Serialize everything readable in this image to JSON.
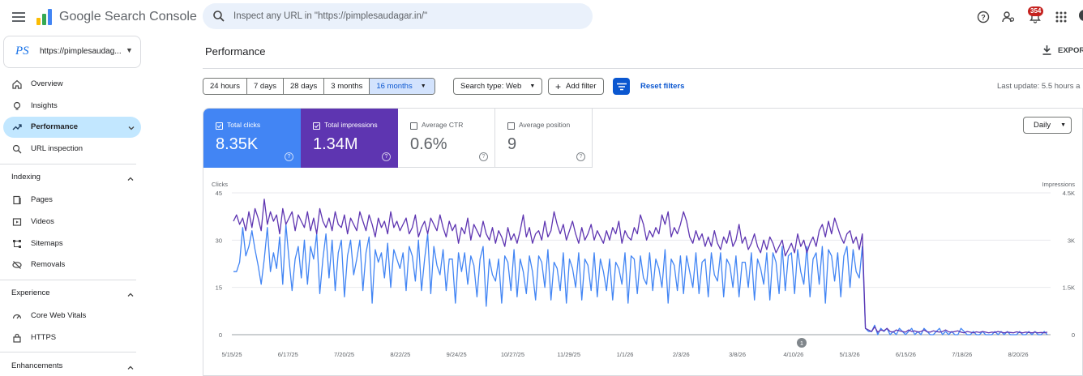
{
  "app": {
    "name": "Google Search Console"
  },
  "search": {
    "placeholder": "Inspect any URL in \"https://pimplesaudagar.in/\""
  },
  "topbar": {
    "notification_count": "354"
  },
  "property": {
    "logo_text": "PS",
    "label": "https://pimplesaudag..."
  },
  "sidebar": {
    "items": [
      {
        "label": "Overview",
        "icon": "home-icon"
      },
      {
        "label": "Insights",
        "icon": "lightbulb-icon"
      },
      {
        "label": "Performance",
        "icon": "trending-up-icon",
        "active": true
      },
      {
        "label": "URL inspection",
        "icon": "search-icon"
      }
    ],
    "indexing": {
      "title": "Indexing",
      "items": [
        {
          "label": "Pages",
          "icon": "pages-icon"
        },
        {
          "label": "Videos",
          "icon": "video-icon"
        },
        {
          "label": "Sitemaps",
          "icon": "sitemap-icon"
        },
        {
          "label": "Removals",
          "icon": "removal-icon"
        }
      ]
    },
    "experience": {
      "title": "Experience",
      "items": [
        {
          "label": "Core Web Vitals",
          "icon": "gauge-icon"
        },
        {
          "label": "HTTPS",
          "icon": "lock-icon"
        }
      ]
    },
    "enhancements": {
      "title": "Enhancements"
    }
  },
  "main": {
    "title": "Performance",
    "export_label": "EXPOR",
    "date_ranges": [
      "24 hours",
      "7 days",
      "28 days",
      "3 months",
      "16 months"
    ],
    "selected_range": "16 months",
    "search_type": "Search type: Web",
    "add_filter": "Add filter",
    "reset_filters": "Reset filters",
    "last_update": "Last update: 5.5 hours a",
    "granularity": "Daily"
  },
  "metrics": [
    {
      "label": "Total clicks",
      "value": "8.35K",
      "checked": true,
      "color": "#4285f4"
    },
    {
      "label": "Total impressions",
      "value": "1.34M",
      "checked": true,
      "color": "#5e35b1"
    },
    {
      "label": "Average CTR",
      "value": "0.6%",
      "checked": false
    },
    {
      "label": "Average position",
      "value": "9",
      "checked": false
    }
  ],
  "chart_data": {
    "type": "line",
    "left_axis_label": "Clicks",
    "right_axis_label": "Impressions",
    "left_ticks": [
      "45",
      "30",
      "15",
      "0"
    ],
    "right_ticks": [
      "4.5K",
      "3K",
      "1.5K",
      "0"
    ],
    "ylim_left": [
      0,
      45
    ],
    "ylim_right": [
      0,
      4500
    ],
    "x_tick_labels": [
      "5/15/25",
      "6/17/25",
      "7/20/25",
      "8/22/25",
      "9/24/25",
      "10/27/25",
      "11/29/25",
      "1/1/26",
      "2/3/26",
      "3/8/26",
      "4/10/26",
      "5/13/26",
      "6/15/26",
      "7/18/26",
      "8/20/26"
    ],
    "annotation_marker": "1",
    "series": [
      {
        "name": "Clicks",
        "color": "#4285f4",
        "values": [
          20,
          20,
          23,
          34,
          25,
          28,
          33,
          27,
          22,
          16,
          24,
          34,
          20,
          26,
          21,
          31,
          16,
          35,
          24,
          14,
          24,
          28,
          18,
          30,
          16,
          28,
          24,
          32,
          13,
          24,
          32,
          18,
          30,
          14,
          26,
          30,
          12,
          25,
          30,
          19,
          24,
          30,
          14,
          26,
          31,
          10,
          27,
          23,
          26,
          18,
          29,
          15,
          27,
          24,
          21,
          26,
          14,
          28,
          25,
          17,
          30,
          14,
          24,
          32,
          13,
          28,
          22,
          19,
          27,
          14,
          24,
          24,
          10,
          26,
          20,
          26,
          16,
          25,
          22,
          12,
          24,
          28,
          9,
          24,
          19,
          17,
          24,
          10,
          25,
          23,
          14,
          27,
          12,
          24,
          20,
          13,
          25,
          20,
          11,
          25,
          23,
          15,
          27,
          11,
          23,
          21,
          14,
          26,
          10,
          24,
          21,
          15,
          26,
          11,
          24,
          22,
          14,
          26,
          12,
          24,
          20,
          14,
          24,
          11,
          23,
          21,
          16,
          26,
          10,
          25,
          24,
          13,
          25,
          18,
          16,
          26,
          14,
          24,
          21,
          15,
          27,
          10,
          24,
          22,
          14,
          25,
          13,
          25,
          20,
          15,
          26,
          13,
          23,
          24,
          12,
          26,
          19,
          17,
          26,
          12,
          24,
          22,
          15,
          25,
          12,
          23,
          23,
          15,
          26,
          11,
          24,
          21,
          16,
          26,
          11,
          26,
          23,
          13,
          28,
          14,
          25,
          26,
          13,
          27,
          20,
          16,
          28,
          12,
          24,
          26,
          16,
          28,
          10,
          27,
          25,
          17,
          26,
          12,
          25,
          28,
          15,
          27,
          20,
          18,
          28,
          2,
          1,
          1,
          3,
          0,
          2,
          1,
          2,
          0,
          1,
          0,
          2,
          1,
          0,
          1,
          2,
          0,
          1,
          0,
          2,
          1,
          0,
          0,
          1,
          2,
          0,
          1,
          0,
          1,
          0,
          0,
          2,
          1,
          0,
          0,
          1,
          0,
          0,
          1,
          0,
          0,
          0,
          1,
          0,
          1,
          0,
          1,
          0,
          0,
          0,
          1,
          0,
          0,
          1,
          0,
          1,
          0,
          0,
          1,
          0
        ]
      },
      {
        "name": "Impressions",
        "color": "#5e35b1",
        "values": [
          3600,
          3800,
          3500,
          3700,
          3300,
          3900,
          3400,
          4000,
          3700,
          3300,
          4300,
          3500,
          3900,
          3600,
          3800,
          3200,
          4000,
          3500,
          3700,
          3900,
          3300,
          3800,
          3600,
          3400,
          3900,
          3300,
          3700,
          3200,
          4000,
          3600,
          3400,
          3700,
          3300,
          3900,
          3500,
          3400,
          3800,
          3200,
          3700,
          3500,
          3300,
          3900,
          3600,
          3300,
          3800,
          3500,
          3100,
          3700,
          3400,
          3600,
          3200,
          3900,
          3400,
          3600,
          3300,
          3500,
          3700,
          3200,
          3400,
          3800,
          3100,
          3400,
          3600,
          3200,
          3700,
          3500,
          3300,
          3800,
          3400,
          3100,
          3600,
          3300,
          3500,
          2900,
          3400,
          3200,
          3700,
          3000,
          3500,
          3300,
          3100,
          3600,
          3200,
          3000,
          3400,
          2900,
          3300,
          3100,
          2800,
          3400,
          3000,
          3200,
          2900,
          3300,
          3800,
          3100,
          3400,
          2900,
          3200,
          3300,
          3000,
          3600,
          3100,
          3300,
          3900,
          3500,
          3200,
          3500,
          3000,
          3300,
          3600,
          3200,
          2900,
          3400,
          3000,
          3200,
          3500,
          3000,
          3300,
          3100,
          2900,
          3300,
          3000,
          3400,
          3200,
          3600,
          2900,
          3300,
          3100,
          3000,
          3400,
          3200,
          3800,
          3500,
          3000,
          3300,
          3100,
          3400,
          3200,
          3800,
          3500,
          3900,
          3100,
          3400,
          3200,
          3500,
          3900,
          3600,
          3100,
          2900,
          3300,
          3000,
          3200,
          2800,
          3100,
          2800,
          3300,
          2900,
          2700,
          3100,
          2900,
          3300,
          2800,
          3000,
          3500,
          2900,
          3100,
          2700,
          2900,
          3200,
          2800,
          2600,
          3000,
          2700,
          3100,
          2900,
          2600,
          2800,
          3000,
          2500,
          2700,
          2900,
          2600,
          3200,
          2800,
          3000,
          2600,
          2900,
          3100,
          2800,
          3300,
          3500,
          3100,
          3600,
          3200,
          3700,
          3400,
          3100,
          2900,
          3200,
          3300,
          2900,
          3100,
          2700,
          3200,
          200,
          150,
          100,
          250,
          80,
          150,
          120,
          200,
          100,
          80,
          150,
          120,
          100,
          80,
          150,
          100,
          120,
          80,
          100,
          150,
          90,
          80,
          120,
          100,
          80,
          100,
          150,
          90,
          80,
          100,
          120,
          80,
          60,
          100,
          80,
          60,
          90,
          70,
          100,
          80,
          60,
          80,
          70,
          100,
          80,
          60,
          80,
          70,
          60,
          90,
          70,
          60,
          80,
          70,
          60,
          80,
          60,
          70,
          60,
          80
        ]
      }
    ]
  }
}
